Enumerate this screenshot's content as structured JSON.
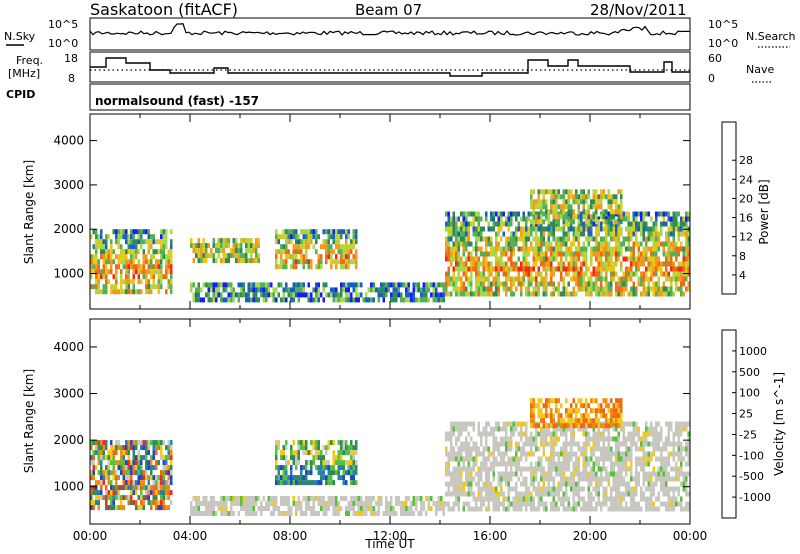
{
  "header": {
    "station": "Saskatoon (fitACF)",
    "beam": "Beam 07",
    "date": "28/Nov/2011"
  },
  "aux_panels": {
    "nsky_label": "N.Sky",
    "nsky_top": "10^5",
    "nsky_bottom": "10^0",
    "nsearch_label": "N.Search",
    "nsearch_top": "10^5",
    "nsearch_bottom": "10^0",
    "freq_label_1": "Freq.",
    "freq_label_2": "[MHz]",
    "freq_top": "18",
    "freq_bottom": "8",
    "nave_label": "Nave",
    "nave_top": "60",
    "nave_bottom": "0",
    "cpid_label": "CPID",
    "cpid_text": "normalsound (fast) -157"
  },
  "chart_data": [
    {
      "type": "heatmap",
      "title": "Power",
      "ylabel": "Slant Range [km]",
      "xlabel": "Time UT",
      "ylim": [
        200,
        4600
      ],
      "xlim": [
        0,
        24
      ],
      "yticks": [
        "1000",
        "2000",
        "3000",
        "4000"
      ],
      "colorbar": {
        "label": "Power [dB]",
        "ticks": [
          "4",
          "8",
          "12",
          "16",
          "20",
          "24",
          "28"
        ],
        "colors": [
          "#1a1aff",
          "#1a5fc6",
          "#2e8b57",
          "#55b055",
          "#a5d84a",
          "#e6c81a",
          "#f29a1f",
          "#f26a14",
          "#ee2a18"
        ]
      },
      "echo_regions": [
        {
          "t0": 0.0,
          "t1": 3.3,
          "r0": 550,
          "r1": 2000,
          "level": "high"
        },
        {
          "t0": 4.0,
          "t1": 6.8,
          "r0": 1300,
          "r1": 1800,
          "level": "medium"
        },
        {
          "t0": 7.4,
          "t1": 10.7,
          "r0": 1100,
          "r1": 2000,
          "level": "high"
        },
        {
          "t0": 4.0,
          "t1": 14.2,
          "r0": 400,
          "r1": 800,
          "level": "low"
        },
        {
          "t0": 14.2,
          "t1": 24.0,
          "r0": 550,
          "r1": 2400,
          "level": "high"
        },
        {
          "t0": 17.6,
          "t1": 21.3,
          "r0": 2200,
          "r1": 2900,
          "level": "medium"
        }
      ]
    },
    {
      "type": "heatmap",
      "title": "Velocity",
      "ylabel": "Slant Range [km]",
      "xlabel": "Time UT",
      "ylim": [
        200,
        4600
      ],
      "xlim": [
        0,
        24
      ],
      "yticks": [
        "1000",
        "2000",
        "3000",
        "4000"
      ],
      "xticks": [
        "00:00",
        "04:00",
        "08:00",
        "12:00",
        "16:00",
        "20:00",
        "00:00"
      ],
      "colorbar": {
        "label": "Velocity [m s^-1]",
        "ticks": [
          "1000",
          "500",
          "100",
          "25",
          "-25",
          "-100",
          "-500",
          "-1000"
        ],
        "colors": [
          "#2244cc",
          "#2a7fb0",
          "#2e8b57",
          "#55c23a",
          "#c8c8c0",
          "#f2c81a",
          "#f28a14",
          "#ee6a10",
          "#ee2a18"
        ]
      },
      "echo_regions": [
        {
          "t0": 0.0,
          "t1": 3.3,
          "r0": 550,
          "r1": 2000,
          "level": "mixed"
        },
        {
          "t0": 7.4,
          "t1": 10.7,
          "r0": 1100,
          "r1": 2000,
          "level": "positive"
        },
        {
          "t0": 4.0,
          "t1": 14.2,
          "r0": 400,
          "r1": 800,
          "level": "near-zero"
        },
        {
          "t0": 14.2,
          "t1": 24.0,
          "r0": 550,
          "r1": 2400,
          "level": "near-zero"
        },
        {
          "t0": 17.6,
          "t1": 21.3,
          "r0": 2300,
          "r1": 2900,
          "level": "negative"
        }
      ]
    }
  ]
}
